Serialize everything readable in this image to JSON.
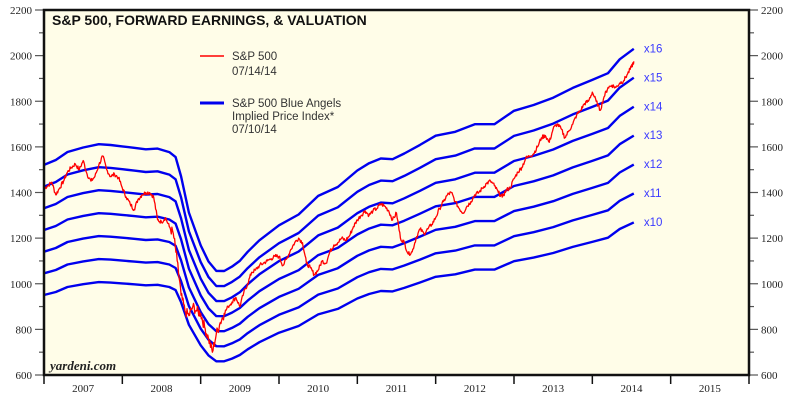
{
  "chart_data": {
    "type": "line",
    "title": "S&P 500, FORWARD EARNINGS, & VALUATION",
    "xlabel": "",
    "ylabel": "",
    "xlim": [
      2007,
      2016
    ],
    "ylim": [
      600,
      2200
    ],
    "y_ticks": [
      600,
      800,
      1000,
      1200,
      1400,
      1600,
      1800,
      2000,
      2200
    ],
    "x_tick_labels": [
      "2007",
      "2008",
      "2009",
      "2010",
      "2011",
      "2012",
      "2013",
      "2014",
      "2015"
    ],
    "grid": false,
    "y_axis_both_sides": true,
    "legend": {
      "placement": "top-center",
      "entries": [
        {
          "name": "S&P 500",
          "date": "07/14/14",
          "color": "#ff0000"
        },
        {
          "name": "S&P 500 Blue Angels",
          "name_line2": "Implied Price Index*",
          "date": "07/10/14",
          "color": "#0000ee"
        }
      ]
    },
    "watermark": "yardeni.com",
    "colors": {
      "background": "#fffde8",
      "sp500": "#ff0000",
      "bands": "#0000ee",
      "band_label": "#3a3aff"
    },
    "forward_earnings": {
      "x": [
        2007.0,
        2007.15,
        2007.3,
        2007.5,
        2007.7,
        2007.85,
        2008.0,
        2008.15,
        2008.3,
        2008.45,
        2008.6,
        2008.68,
        2008.75,
        2008.85,
        2009.0,
        2009.1,
        2009.2,
        2009.3,
        2009.4,
        2009.5,
        2009.6,
        2009.75,
        2010.0,
        2010.25,
        2010.5,
        2010.75,
        2011.0,
        2011.15,
        2011.3,
        2011.45,
        2011.6,
        2011.8,
        2012.0,
        2012.25,
        2012.5,
        2012.75,
        2013.0,
        2013.25,
        2013.5,
        2013.75,
        2014.0,
        2014.2,
        2014.35,
        2014.53
      ],
      "y": [
        95.5,
        96.8,
        98.6,
        100.3,
        101.3,
        101.0,
        100.2,
        99.4,
        98.9,
        99.3,
        98.6,
        97.5,
        92.0,
        82.0,
        73.0,
        68.5,
        66.2,
        65.8,
        67.3,
        68.8,
        71.0,
        74.5,
        78.2,
        82.0,
        86.0,
        89.5,
        93.2,
        95.5,
        97.0,
        96.8,
        98.3,
        100.5,
        102.8,
        104.5,
        105.8,
        106.5,
        109.8,
        111.3,
        113.8,
        115.8,
        118.6,
        120.2,
        124.0,
        127.0
      ]
    },
    "series": [
      {
        "name": "x16",
        "multiple": 16
      },
      {
        "name": "x15",
        "multiple": 15
      },
      {
        "name": "x14",
        "multiple": 14
      },
      {
        "name": "x13",
        "multiple": 13
      },
      {
        "name": "x12",
        "multiple": 12
      },
      {
        "name": "x11",
        "multiple": 11
      },
      {
        "name": "x10",
        "multiple": 10
      }
    ],
    "sp500": {
      "name": "S&P 500",
      "x": [
        2007.0,
        2007.05,
        2007.1,
        2007.15,
        2007.2,
        2007.25,
        2007.3,
        2007.35,
        2007.4,
        2007.45,
        2007.5,
        2007.55,
        2007.6,
        2007.65,
        2007.7,
        2007.75,
        2007.8,
        2007.85,
        2007.9,
        2007.95,
        2008.0,
        2008.05,
        2008.1,
        2008.15,
        2008.2,
        2008.25,
        2008.3,
        2008.35,
        2008.4,
        2008.45,
        2008.5,
        2008.55,
        2008.6,
        2008.65,
        2008.7,
        2008.75,
        2008.8,
        2008.85,
        2008.9,
        2008.95,
        2009.0,
        2009.05,
        2009.1,
        2009.15,
        2009.2,
        2009.25,
        2009.3,
        2009.35,
        2009.4,
        2009.45,
        2009.5,
        2009.55,
        2009.6,
        2009.65,
        2009.7,
        2009.75,
        2009.8,
        2009.85,
        2009.9,
        2009.95,
        2010.0,
        2010.05,
        2010.1,
        2010.15,
        2010.2,
        2010.25,
        2010.3,
        2010.35,
        2010.4,
        2010.45,
        2010.5,
        2010.55,
        2010.6,
        2010.65,
        2010.7,
        2010.75,
        2010.8,
        2010.85,
        2010.9,
        2010.95,
        2011.0,
        2011.05,
        2011.1,
        2011.15,
        2011.2,
        2011.25,
        2011.3,
        2011.35,
        2011.4,
        2011.45,
        2011.5,
        2011.55,
        2011.6,
        2011.65,
        2011.7,
        2011.75,
        2011.8,
        2011.85,
        2011.9,
        2011.95,
        2012.0,
        2012.05,
        2012.1,
        2012.15,
        2012.2,
        2012.25,
        2012.3,
        2012.35,
        2012.4,
        2012.45,
        2012.5,
        2012.55,
        2012.6,
        2012.65,
        2012.7,
        2012.75,
        2012.8,
        2012.85,
        2012.9,
        2012.95,
        2013.0,
        2013.05,
        2013.1,
        2013.15,
        2013.2,
        2013.25,
        2013.3,
        2013.35,
        2013.4,
        2013.45,
        2013.5,
        2013.55,
        2013.6,
        2013.65,
        2013.7,
        2013.75,
        2013.8,
        2013.85,
        2013.9,
        2013.95,
        2014.0,
        2014.05,
        2014.1,
        2014.15,
        2014.2,
        2014.25,
        2014.3,
        2014.35,
        2014.4,
        2014.45,
        2014.5,
        2014.53
      ],
      "y": [
        1418,
        1430,
        1445,
        1390,
        1420,
        1450,
        1490,
        1510,
        1525,
        1500,
        1540,
        1480,
        1450,
        1470,
        1520,
        1560,
        1500,
        1470,
        1480,
        1465,
        1420,
        1380,
        1350,
        1325,
        1370,
        1390,
        1400,
        1400,
        1380,
        1280,
        1270,
        1290,
        1250,
        1220,
        1100,
        950,
        880,
        860,
        900,
        880,
        870,
        810,
        760,
        700,
        780,
        830,
        870,
        900,
        920,
        940,
        900,
        960,
        1000,
        1050,
        1060,
        1080,
        1090,
        1100,
        1110,
        1120,
        1120,
        1080,
        1110,
        1150,
        1180,
        1200,
        1180,
        1090,
        1070,
        1040,
        1060,
        1100,
        1090,
        1140,
        1170,
        1180,
        1200,
        1190,
        1210,
        1250,
        1280,
        1300,
        1320,
        1300,
        1320,
        1330,
        1350,
        1340,
        1320,
        1280,
        1310,
        1200,
        1180,
        1130,
        1140,
        1200,
        1240,
        1220,
        1240,
        1260,
        1290,
        1330,
        1360,
        1390,
        1400,
        1360,
        1330,
        1310,
        1340,
        1360,
        1390,
        1400,
        1420,
        1440,
        1450,
        1430,
        1400,
        1380,
        1410,
        1420,
        1460,
        1490,
        1510,
        1550,
        1560,
        1570,
        1600,
        1640,
        1650,
        1620,
        1680,
        1700,
        1680,
        1640,
        1670,
        1700,
        1740,
        1760,
        1790,
        1800,
        1840,
        1800,
        1760,
        1820,
        1860,
        1870,
        1860,
        1880,
        1890,
        1920,
        1950,
        1975
      ]
    }
  }
}
